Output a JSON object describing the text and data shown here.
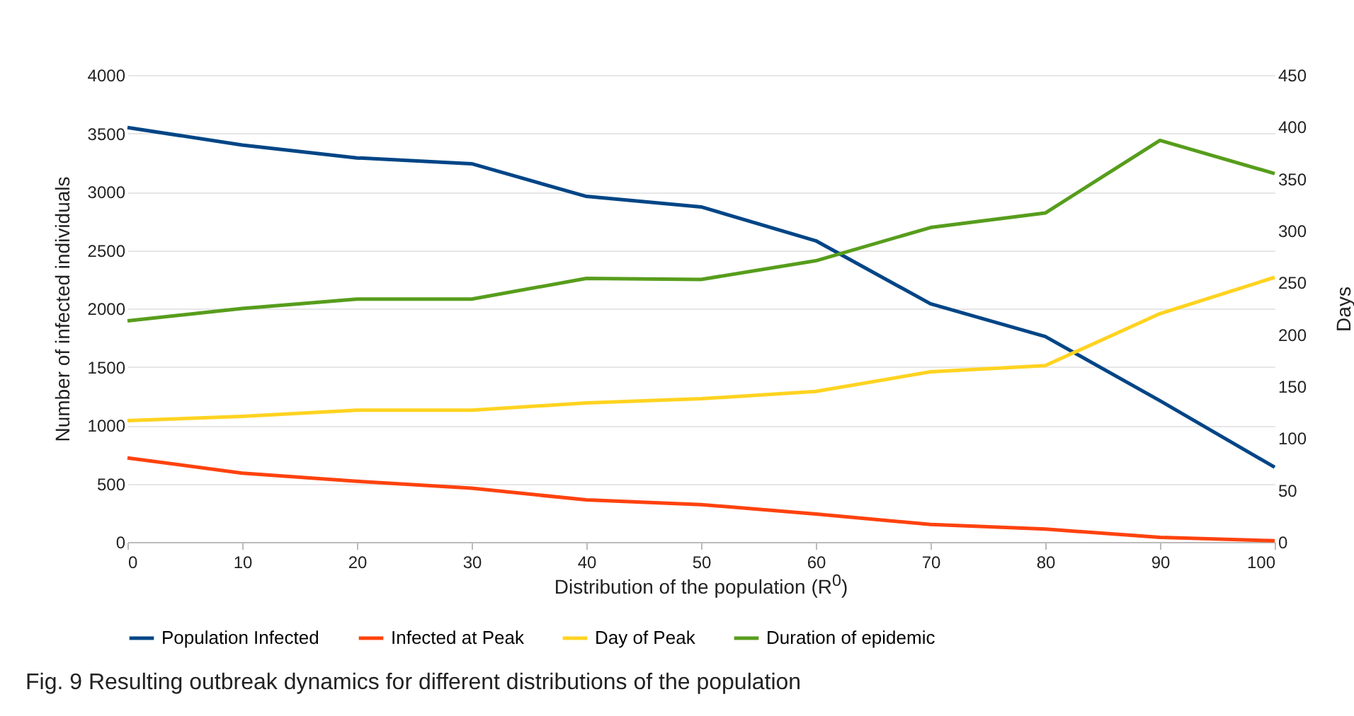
{
  "chart_data": {
    "type": "line",
    "xlabel": "Distribution of the population (R$^{0}$)",
    "ylabel": "Number of infected individuals",
    "y2label": "Days",
    "annotations": [
      "Fig. 9  Resulting outbreak dynamics for different distributions of the population"
    ],
    "x": [
      0,
      10,
      20,
      30,
      40,
      50,
      60,
      70,
      80,
      90,
      100
    ],
    "series": [
      {
        "name": "Population Infected",
        "color": "#004586",
        "values": [
          3550,
          3400,
          3290,
          3240,
          2960,
          2870,
          2580,
          2040,
          1760,
          1210,
          640
        ]
      },
      {
        "name": "Infected at Peak",
        "color": "#ff420e",
        "values": [
          720,
          590,
          520,
          460,
          360,
          320,
          240,
          150,
          110,
          40,
          10
        ]
      },
      {
        "name": "Day of Peak",
        "color": "#ffd320",
        "axis": "y2",
        "values": [
          117,
          121,
          127,
          127,
          134,
          138,
          145,
          164,
          170,
          220,
          255
        ]
      },
      {
        "name": "Duration of epidemic",
        "color": "#579d1c",
        "axis": "y2",
        "values": [
          213,
          225,
          234,
          234,
          254,
          253,
          271,
          303,
          317,
          387,
          355
        ]
      }
    ],
    "xlim": [
      0,
      100
    ],
    "xticks": [
      0,
      10,
      20,
      30,
      40,
      50,
      60,
      70,
      80,
      90,
      100
    ],
    "ylim": [
      0,
      4000
    ],
    "yticks": [
      0,
      500,
      1000,
      1500,
      2000,
      2500,
      3000,
      3500,
      4000
    ],
    "y2lim": [
      0,
      450
    ],
    "y2ticks": [
      0,
      50,
      100,
      150,
      200,
      250,
      300,
      350,
      400,
      450
    ],
    "grid": "y",
    "legend": "bottom",
    "marker": "none",
    "line_style": "solid"
  }
}
